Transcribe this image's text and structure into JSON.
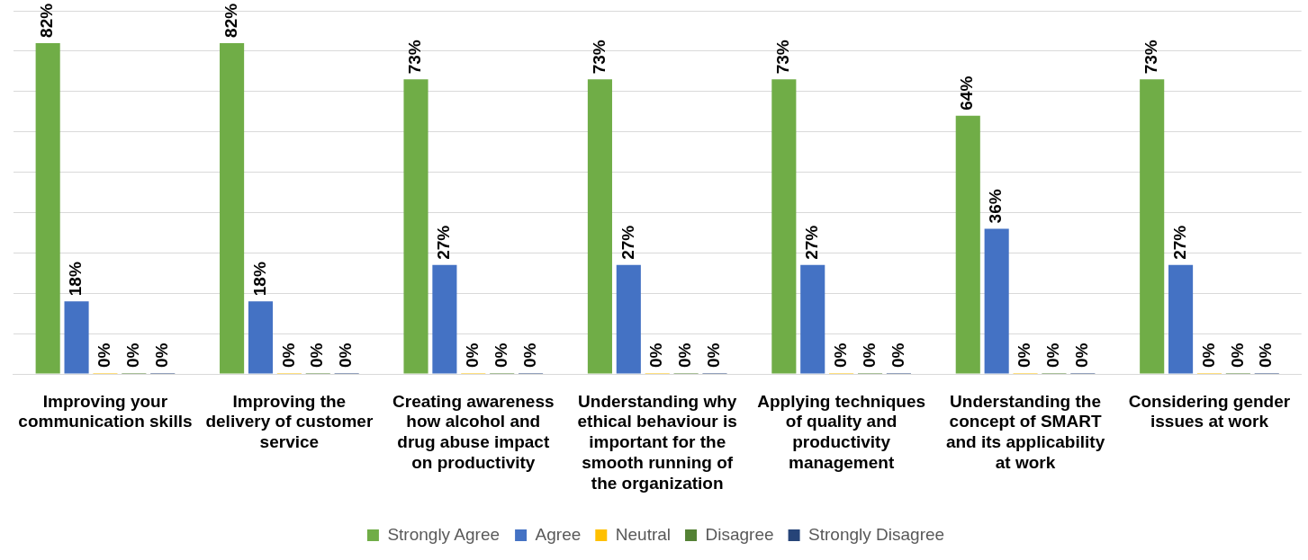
{
  "chart_data": {
    "type": "bar",
    "categories": [
      "Improving your communication skills",
      "Improving the delivery of customer service",
      "Creating awareness how alcohol and drug abuse impact on productivity",
      "Understanding why ethical behaviour is important for the smooth running of the organization",
      "Applying techniques of quality and productivity management",
      "Understanding the concept of SMART and its applicability at work",
      "Considering gender issues at work"
    ],
    "series": [
      {
        "name": "Strongly Agree",
        "color": "#70ad47",
        "values": [
          82,
          82,
          73,
          73,
          73,
          64,
          73
        ],
        "value_labels": [
          "82%",
          "82%",
          "73%",
          "73%",
          "73%",
          "64%",
          "73%"
        ]
      },
      {
        "name": "Agree",
        "color": "#4472c4",
        "values": [
          18,
          18,
          27,
          27,
          27,
          36,
          27
        ],
        "value_labels": [
          "18%",
          "18%",
          "27%",
          "27%",
          "27%",
          "36%",
          "27%"
        ]
      },
      {
        "name": "Neutral",
        "color": "#ffc000",
        "values": [
          0,
          0,
          0,
          0,
          0,
          0,
          0
        ],
        "value_labels": [
          "0%",
          "0%",
          "0%",
          "0%",
          "0%",
          "0%",
          "0%"
        ]
      },
      {
        "name": "Disagree",
        "color": "#548235",
        "values": [
          0,
          0,
          0,
          0,
          0,
          0,
          0
        ],
        "value_labels": [
          "0%",
          "0%",
          "0%",
          "0%",
          "0%",
          "0%",
          "0%"
        ]
      },
      {
        "name": "Strongly Disagree",
        "color": "#264478",
        "values": [
          0,
          0,
          0,
          0,
          0,
          0,
          0
        ],
        "value_labels": [
          "0%",
          "0%",
          "0%",
          "0%",
          "0%",
          "0%",
          "0%"
        ]
      }
    ],
    "relative": false,
    "grid": "y",
    "legend": "bottom",
    "tick_labels": "x"
  }
}
